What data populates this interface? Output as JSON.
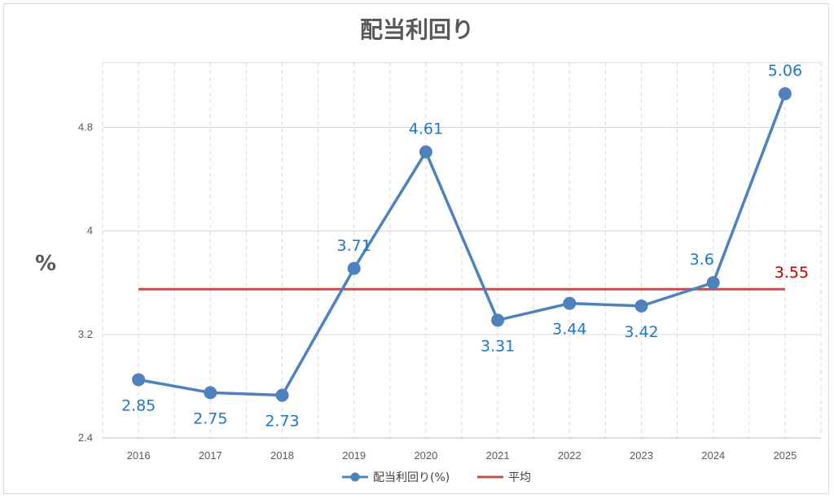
{
  "chart_data": {
    "type": "line",
    "title": "配当利回り",
    "ylabel": "%",
    "xlabel": "",
    "categories": [
      "2016",
      "2017",
      "2018",
      "2019",
      "2020",
      "2021",
      "2022",
      "2023",
      "2024",
      "2025"
    ],
    "series": [
      {
        "name": "配当利回り(%)",
        "values": [
          2.85,
          2.75,
          2.73,
          3.71,
          4.61,
          3.31,
          3.44,
          3.42,
          3.6,
          5.06
        ],
        "labels": [
          "2.85",
          "2.75",
          "2.73",
          "3.71",
          "4.61",
          "3.31",
          "3.44",
          "3.42",
          "3.6",
          "5.06"
        ],
        "color": "#4f81bd"
      },
      {
        "name": "平均",
        "value": 3.55,
        "label": "3.55",
        "color": "#c0504d"
      }
    ],
    "ylim": [
      2.4,
      5.3
    ],
    "yticks": [
      "2.4",
      "3.2",
      "4",
      "4.8"
    ],
    "ytick_values": [
      2.4,
      3.2,
      4.0,
      4.8
    ],
    "grid": true,
    "legend": "bottom",
    "label_color": "#1f77c4",
    "avg_label_color": "#c00000"
  }
}
